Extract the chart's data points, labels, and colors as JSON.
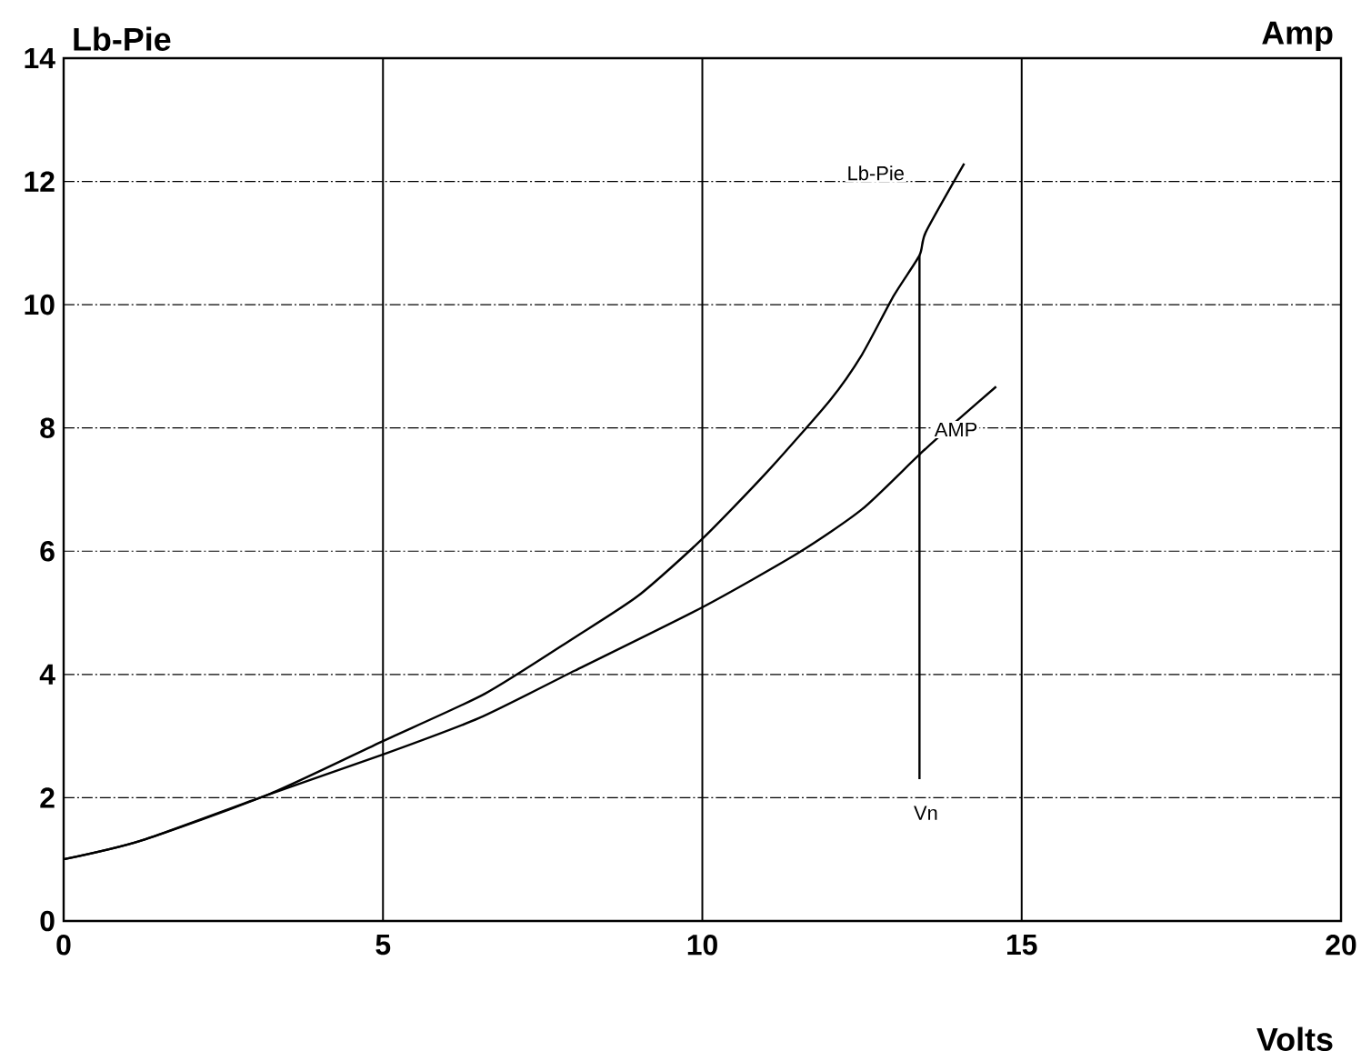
{
  "chart_data": {
    "type": "line",
    "xlabel": "Volts",
    "ylabel": "Lb-Pie",
    "y2label": "Amp",
    "xlim": [
      0,
      20
    ],
    "xticks": [
      0,
      5,
      10,
      15,
      20
    ],
    "ylim": [
      0,
      14
    ],
    "yticks": [
      0,
      2,
      4,
      6,
      8,
      10,
      12,
      14
    ],
    "grid": true,
    "marker": "none",
    "line_style": "solid",
    "series": [
      {
        "name": "Lb-Pie",
        "color": "#000000",
        "x": [
          0,
          1.2,
          3.2,
          5,
          6.6,
          8,
          9,
          10,
          11,
          12,
          12.5,
          13,
          13.4,
          13.5,
          14.1
        ],
        "values": [
          1.0,
          1.3,
          2.05,
          2.92,
          3.69,
          4.6,
          5.28,
          6.2,
          7.27,
          8.45,
          9.19,
          10.15,
          10.8,
          11.18,
          12.29
        ]
      },
      {
        "name": "AMP",
        "color": "#000000",
        "x": [
          0,
          1.2,
          3.2,
          5,
          6.5,
          8,
          10,
          11.5,
          12.5,
          13.4,
          14,
          14.6
        ],
        "values": [
          1.0,
          1.3,
          2.05,
          2.7,
          3.29,
          4.06,
          5.09,
          5.97,
          6.68,
          7.57,
          8.13,
          8.67
        ]
      },
      {
        "name": "Vn",
        "color": "#000000",
        "x": [
          13.4,
          13.4
        ],
        "values": [
          2.3,
          10.8
        ]
      }
    ]
  }
}
